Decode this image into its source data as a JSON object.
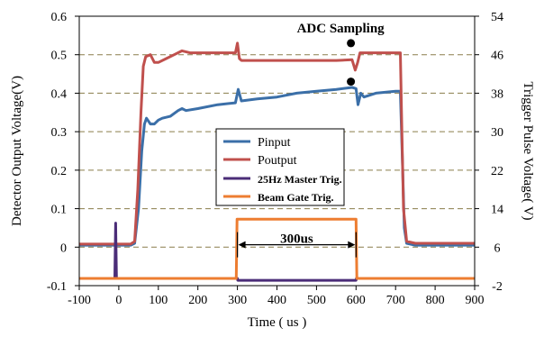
{
  "chart_data": {
    "type": "line",
    "title": "",
    "xlabel": "Time ( us )",
    "ylabel_left": "Detector Output Voltage(V)",
    "ylabel_right": "Trigger Pulse Voltage( V)",
    "xlim": [
      -100,
      900
    ],
    "ylim_left": [
      -0.1,
      0.6
    ],
    "ylim_right": [
      -2,
      54
    ],
    "x_ticks": [
      "-100",
      "0",
      "100",
      "200",
      "300",
      "400",
      "500",
      "600",
      "700",
      "800",
      "900"
    ],
    "y_left_ticks": [
      "-0.1",
      "0",
      "0.1",
      "0.2",
      "0.3",
      "0.4",
      "0.5",
      "0.6"
    ],
    "y_right_ticks": [
      "-2",
      "6",
      "14",
      "22",
      "30",
      "38",
      "46",
      "54"
    ],
    "grid": "horizontal dashed",
    "legend_position": "center",
    "series": [
      {
        "name": "Pinput",
        "axis": "left",
        "color": "#3B6FA8",
        "points": [
          [
            -100,
            0.005
          ],
          [
            30,
            0.005
          ],
          [
            40,
            0.01
          ],
          [
            50,
            0.1
          ],
          [
            58,
            0.25
          ],
          [
            65,
            0.32
          ],
          [
            70,
            0.335
          ],
          [
            80,
            0.32
          ],
          [
            90,
            0.32
          ],
          [
            100,
            0.33
          ],
          [
            110,
            0.335
          ],
          [
            130,
            0.34
          ],
          [
            150,
            0.355
          ],
          [
            160,
            0.36
          ],
          [
            170,
            0.355
          ],
          [
            200,
            0.36
          ],
          [
            250,
            0.37
          ],
          [
            295,
            0.375
          ],
          [
            302,
            0.41
          ],
          [
            310,
            0.38
          ],
          [
            350,
            0.385
          ],
          [
            400,
            0.39
          ],
          [
            450,
            0.4
          ],
          [
            500,
            0.405
          ],
          [
            550,
            0.41
          ],
          [
            590,
            0.415
          ],
          [
            600,
            0.412
          ],
          [
            605,
            0.37
          ],
          [
            612,
            0.4
          ],
          [
            620,
            0.39
          ],
          [
            650,
            0.4
          ],
          [
            700,
            0.405
          ],
          [
            712,
            0.405
          ],
          [
            718,
            0.2
          ],
          [
            722,
            0.05
          ],
          [
            728,
            0.01
          ],
          [
            750,
            0.005
          ],
          [
            900,
            0.005
          ]
        ]
      },
      {
        "name": "Poutput",
        "axis": "left",
        "color": "#C0504D",
        "points": [
          [
            -100,
            0.008
          ],
          [
            30,
            0.008
          ],
          [
            40,
            0.015
          ],
          [
            48,
            0.15
          ],
          [
            56,
            0.35
          ],
          [
            62,
            0.47
          ],
          [
            68,
            0.495
          ],
          [
            80,
            0.5
          ],
          [
            90,
            0.48
          ],
          [
            100,
            0.48
          ],
          [
            120,
            0.49
          ],
          [
            140,
            0.5
          ],
          [
            160,
            0.51
          ],
          [
            180,
            0.505
          ],
          [
            200,
            0.505
          ],
          [
            250,
            0.505
          ],
          [
            295,
            0.505
          ],
          [
            300,
            0.53
          ],
          [
            305,
            0.49
          ],
          [
            310,
            0.485
          ],
          [
            350,
            0.485
          ],
          [
            400,
            0.485
          ],
          [
            450,
            0.485
          ],
          [
            500,
            0.485
          ],
          [
            550,
            0.485
          ],
          [
            590,
            0.487
          ],
          [
            598,
            0.46
          ],
          [
            604,
            0.48
          ],
          [
            610,
            0.505
          ],
          [
            650,
            0.505
          ],
          [
            700,
            0.505
          ],
          [
            712,
            0.505
          ],
          [
            716,
            0.3
          ],
          [
            720,
            0.1
          ],
          [
            728,
            0.015
          ],
          [
            750,
            0.01
          ],
          [
            900,
            0.01
          ]
        ]
      },
      {
        "name": "25Hz Master Trig.",
        "axis": "right",
        "color": "#4B2D78",
        "points": [
          [
            -100,
            -0.5
          ],
          [
            -10,
            -0.5
          ],
          [
            -8,
            11
          ],
          [
            -6,
            -0.5
          ],
          [
            300,
            -0.5
          ],
          [
            301,
            -0.9
          ],
          [
            600,
            -0.9
          ],
          [
            601,
            -0.5
          ],
          [
            900,
            -0.5
          ]
        ]
      },
      {
        "name": "Beam Gate Trig.",
        "axis": "right",
        "color": "#ED7D31",
        "points": [
          [
            -100,
            -0.5
          ],
          [
            297,
            -0.5
          ],
          [
            299,
            11.8
          ],
          [
            600,
            11.8
          ],
          [
            602,
            -0.5
          ],
          [
            900,
            -0.5
          ]
        ]
      }
    ],
    "markers": [
      {
        "x": 587,
        "y": 0.43
      },
      {
        "x": 587,
        "y": 0.53
      }
    ],
    "annotations": [
      {
        "text": "ADC Sampling"
      },
      {
        "text": "300us"
      }
    ],
    "span": {
      "from": 300,
      "to": 600,
      "y_right": 6.5
    }
  }
}
